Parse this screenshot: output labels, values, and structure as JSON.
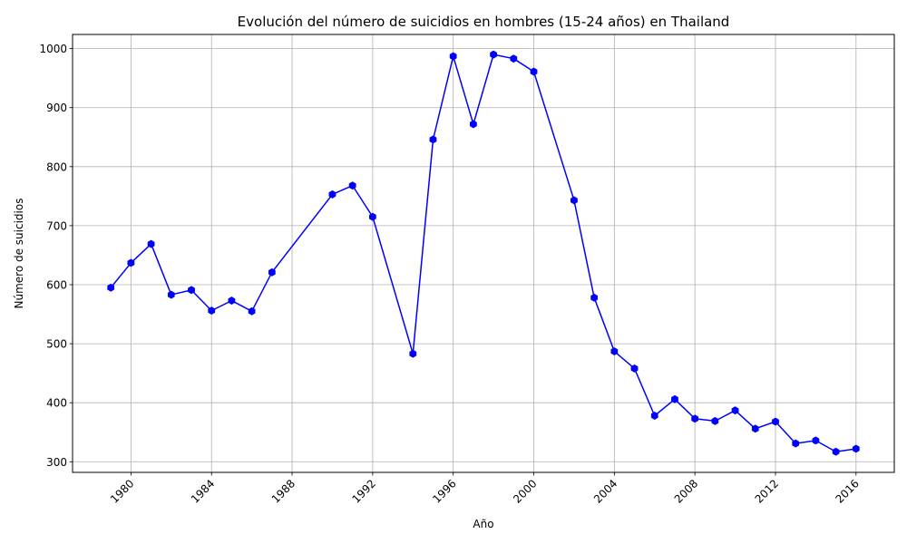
{
  "chart_data": {
    "type": "line",
    "title": "Evolución del número de suicidios en hombres (15-24 años) en Thailand",
    "xlabel": "Año",
    "ylabel": "Número de suicidios",
    "xlim": [
      1977.1,
      2017.9
    ],
    "ylim": [
      282,
      1024
    ],
    "x_ticks": [
      1980,
      1984,
      1988,
      1992,
      1996,
      2000,
      2004,
      2008,
      2012,
      2016
    ],
    "y_ticks": [
      300,
      400,
      500,
      600,
      700,
      800,
      900,
      1000
    ],
    "grid": true,
    "legend": "none",
    "series": [
      {
        "color": "#0000ff",
        "marker": "hexagon",
        "x": [
          1979,
          1980,
          1981,
          1982,
          1983,
          1984,
          1985,
          1986,
          1987,
          1990,
          1991,
          1992,
          1994,
          1995,
          1996,
          1997,
          1998,
          1999,
          2000,
          2002,
          2003,
          2004,
          2005,
          2006,
          2007,
          2008,
          2009,
          2010,
          2011,
          2012,
          2013,
          2014,
          2015,
          2016
        ],
        "y": [
          595,
          637,
          669,
          583,
          591,
          556,
          573,
          555,
          621,
          753,
          768,
          715,
          483,
          846,
          987,
          872,
          990,
          983,
          961,
          743,
          578,
          487,
          458,
          378,
          406,
          373,
          369,
          387,
          356,
          368,
          331,
          336,
          317,
          322
        ]
      }
    ]
  }
}
